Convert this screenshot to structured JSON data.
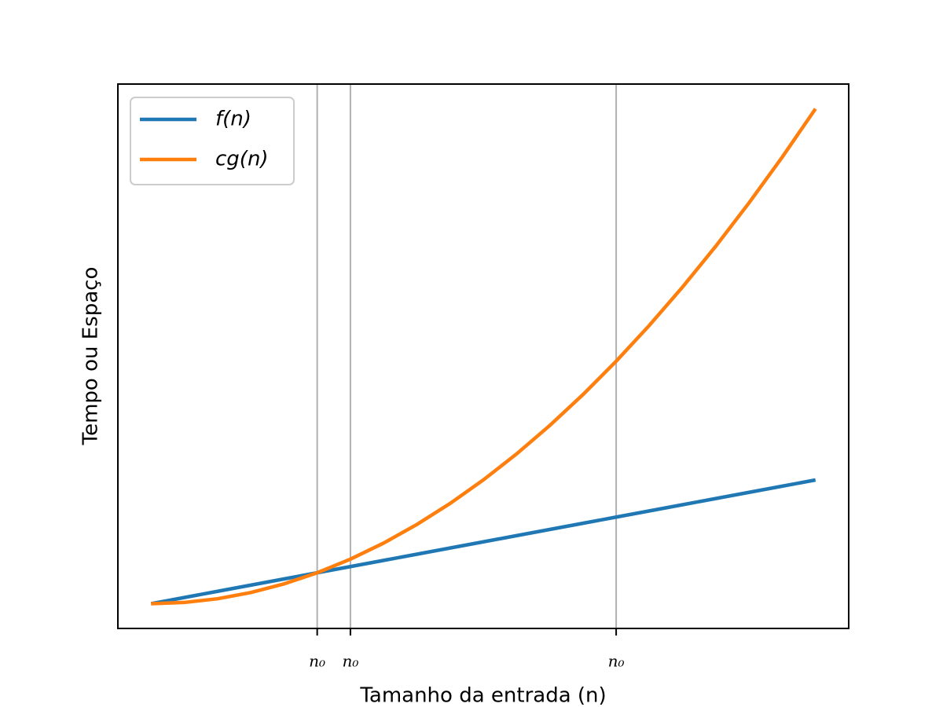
{
  "chart_data": {
    "type": "line",
    "x": [
      0,
      0.5,
      1,
      1.5,
      2,
      2.5,
      3,
      3.5,
      4,
      4.5,
      5,
      5.5,
      6,
      6.5,
      7,
      7.5,
      8,
      8.5,
      9,
      9.5,
      10
    ],
    "series": [
      {
        "name": "f(n)",
        "color": "#1f77b4",
        "values": [
          0,
          0.125,
          0.25,
          0.375,
          0.5,
          0.625,
          0.75,
          0.875,
          1,
          1.125,
          1.25,
          1.375,
          1.5,
          1.625,
          1.75,
          1.875,
          2,
          2.125,
          2.25,
          2.375,
          2.5
        ]
      },
      {
        "name": "cg(n)",
        "color": "#ff7f0e",
        "values": [
          0,
          0.025,
          0.1,
          0.225,
          0.4,
          0.625,
          0.9,
          1.225,
          1.6,
          2.025,
          2.5,
          3.025,
          3.6,
          4.225,
          4.9,
          5.625,
          6.4,
          7.225,
          8.1,
          9.025,
          10
        ]
      }
    ],
    "xlim": [
      -0.5,
      10.5
    ],
    "ylim": [
      -0.5,
      10.5
    ],
    "xticks": [
      {
        "value": 2.5,
        "label": "n₀"
      },
      {
        "value": 3,
        "label": "n₀"
      },
      {
        "value": 7,
        "label": "n₀"
      }
    ],
    "xlabel": "Tamanho da entrada (n)",
    "ylabel": "Tempo ou Espaço",
    "grid": true,
    "legend": "upper left"
  }
}
